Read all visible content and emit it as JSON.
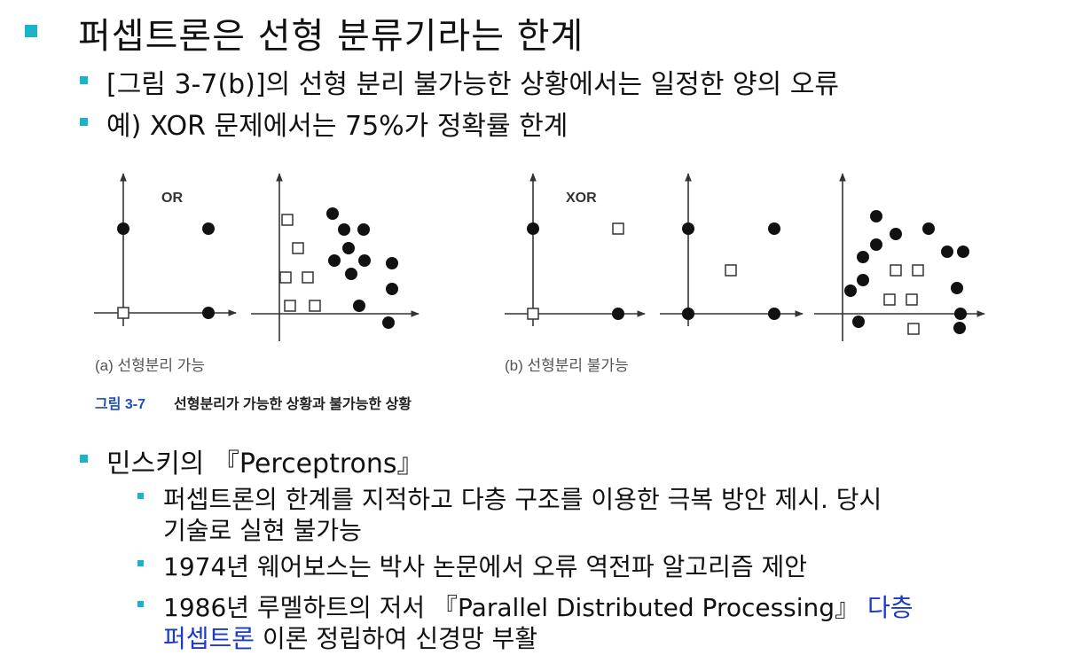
{
  "title": "퍼셉트론은 선형 분류기라는 한계",
  "bullets_top": [
    "[그림 3-7(b)]의 선형 분리 불가능한 상황에서는 일정한 양의 오류",
    "예) XOR 문제에서는 75%가 정확률 한계"
  ],
  "figure": {
    "label_or": "OR",
    "label_xor": "XOR",
    "caption_a": "(a) 선형분리 가능",
    "caption_b": "(b) 선형분리 불가능",
    "fig_num": "그림 3-7",
    "fig_title": "선형분리가 가능한 상황과 불가능한 상황",
    "colors": {
      "caption_blue": "#1f4fb5",
      "bullet": "#19b4c8",
      "marker": "#111111"
    }
  },
  "minsky": {
    "heading": "민스키의 『Perceptrons』",
    "items": {
      "i1_line1": "퍼셉트론의 한계를 지적하고 다층 구조를 이용한 극복 방안 제시. 당시",
      "i1_line2": "기술로 실현 불가능",
      "i2": "1974년 웨어보스는 박사 논문에서 오류 역전파 알고리즘 제안",
      "i3_line1_a": "1986년 루멜하트의 저서 『Parallel Distributed Processing』",
      "i3_line1_b": "다층",
      "i3_line2_a": "퍼셉트론",
      "i3_line2_b": "이론 정립하여 신경망 부활"
    }
  }
}
